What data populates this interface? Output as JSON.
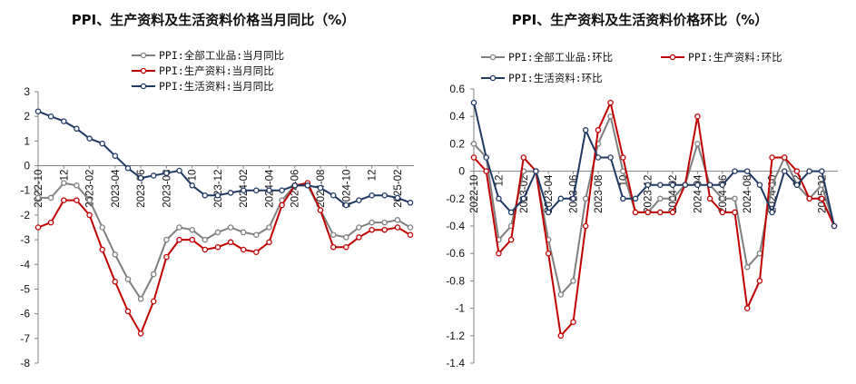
{
  "chart_data": [
    {
      "type": "line",
      "title": "PPI、生产资料及生活资料价格当月同比（%）",
      "x": [
        "2022-10",
        "2022-11",
        "2022-12",
        "2023-01",
        "2023-02",
        "2023-03",
        "2023-04",
        "2023-05",
        "2023-06",
        "2023-07",
        "2023-08",
        "2023-09",
        "2023-10",
        "2023-11",
        "2023-12",
        "2024-01",
        "2024-02",
        "2024-03",
        "2024-04",
        "2024-05",
        "2024-06",
        "2024-07",
        "2024-08",
        "2024-09",
        "2024-10",
        "2024-11",
        "2024-12",
        "2025-01",
        "2025-02",
        "2025-03"
      ],
      "xtick_labels": [
        "2022-10",
        "2022-12",
        "2023-02",
        "2023-04",
        "2023-06",
        "2023-08",
        "2023-10",
        "2023-12",
        "2024-02",
        "2024-04",
        "2024-06",
        "2024-08",
        "2024-10",
        "2024-12",
        "2025-02"
      ],
      "xtick_display": [
        "2022-10",
        "12",
        "2023-02",
        "2023-04",
        "2023-06",
        "2023-08",
        "10",
        "2023-12",
        "2024-02",
        "2024-04",
        "2024-06",
        "2024-08",
        "2024-10",
        "12",
        "2025-02"
      ],
      "ylim": [
        -8,
        3
      ],
      "yticks": [
        3,
        2,
        1,
        0,
        -1,
        -2,
        -3,
        -4,
        -5,
        -6,
        -7,
        -8
      ],
      "series": [
        {
          "name": "PPI:全部工业品:当月同比",
          "color": "#7f7f7f",
          "values": [
            -1.3,
            -1.3,
            -0.7,
            -0.8,
            -1.4,
            -2.5,
            -3.6,
            -4.6,
            -5.4,
            -4.4,
            -3.0,
            -2.5,
            -2.6,
            -3.0,
            -2.7,
            -2.5,
            -2.7,
            -2.8,
            -2.5,
            -1.4,
            -0.8,
            -0.8,
            -1.8,
            -2.8,
            -2.9,
            -2.5,
            -2.3,
            -2.3,
            -2.2,
            -2.5
          ]
        },
        {
          "name": "PPI:生产资料:当月同比",
          "color": "#c00000",
          "values": [
            -2.5,
            -2.3,
            -1.4,
            -1.4,
            -2.0,
            -3.4,
            -4.7,
            -5.9,
            -6.8,
            -5.5,
            -3.7,
            -3.0,
            -3.0,
            -3.4,
            -3.3,
            -3.1,
            -3.4,
            -3.5,
            -3.1,
            -1.6,
            -0.8,
            -0.7,
            -1.8,
            -3.3,
            -3.3,
            -2.9,
            -2.6,
            -2.6,
            -2.5,
            -2.8
          ]
        },
        {
          "name": "PPI:生活资料:当月同比",
          "color": "#1f3864",
          "values": [
            2.2,
            2.0,
            1.8,
            1.5,
            1.1,
            0.9,
            0.4,
            -0.1,
            -0.5,
            -0.4,
            -0.3,
            -0.2,
            -0.8,
            -1.2,
            -1.2,
            -1.1,
            -1.0,
            -1.0,
            -1.0,
            -1.0,
            -0.8,
            -0.8,
            -0.9,
            -1.2,
            -1.6,
            -1.4,
            -1.2,
            -1.2,
            -1.3,
            -1.5
          ]
        }
      ]
    },
    {
      "type": "line",
      "title": "PPI、生产资料及生活资料价格环比（%）",
      "x": [
        "2022-10",
        "2022-11",
        "2022-12",
        "2023-01",
        "2023-02",
        "2023-03",
        "2023-04",
        "2023-05",
        "2023-06",
        "2023-07",
        "2023-08",
        "2023-09",
        "2023-10",
        "2023-11",
        "2023-12",
        "2024-01",
        "2024-02",
        "2024-03",
        "2024-04",
        "2024-05",
        "2024-06",
        "2024-07",
        "2024-08",
        "2024-09",
        "2024-10",
        "2024-11",
        "2024-12",
        "2025-01",
        "2025-02",
        "2025-03"
      ],
      "xtick_labels": [
        "2022-10",
        "2022-12",
        "2023-02",
        "2023-04",
        "2023-06",
        "2023-08",
        "2023-10",
        "2023-12",
        "2024-02",
        "2024-04",
        "2024-06",
        "2024-08",
        "2024-10",
        "2024-12",
        "2025-02"
      ],
      "xtick_display": [
        "2022-10",
        "12",
        "2023-02",
        "2023-04",
        "2023-06",
        "2023-08",
        "10",
        "2023-12",
        "2024-02",
        "2024-04",
        "2024-06",
        "2024-08",
        "2024-10",
        "12",
        "2025-02"
      ],
      "ylim": [
        -1.4,
        0.6
      ],
      "yticks": [
        0.6,
        0.4,
        0.2,
        0,
        -0.2,
        -0.4,
        -0.6,
        -0.8,
        -1,
        -1.2,
        -1.4
      ],
      "series": [
        {
          "name": "PPI:全部工业品:环比",
          "color": "#7f7f7f",
          "values": [
            0.2,
            0.1,
            -0.5,
            -0.4,
            0.0,
            0.0,
            -0.5,
            -0.9,
            -0.8,
            -0.2,
            0.2,
            0.4,
            0.0,
            -0.3,
            -0.3,
            -0.2,
            -0.2,
            -0.1,
            0.2,
            -0.1,
            -0.2,
            -0.2,
            -0.7,
            -0.6,
            -0.1,
            0.1,
            -0.1,
            -0.2,
            -0.1,
            -0.4
          ]
        },
        {
          "name": "PPI:生产资料:环比",
          "color": "#c00000",
          "values": [
            0.1,
            0.0,
            -0.6,
            -0.5,
            0.1,
            0.0,
            -0.6,
            -1.2,
            -1.1,
            -0.4,
            0.3,
            0.5,
            0.1,
            -0.3,
            -0.3,
            -0.3,
            -0.3,
            -0.1,
            0.4,
            -0.2,
            -0.3,
            -0.3,
            -1.0,
            -0.8,
            0.1,
            0.1,
            0.0,
            -0.2,
            -0.2,
            -0.4
          ]
        },
        {
          "name": "PPI:生活资料:环比",
          "color": "#1f3864",
          "values": [
            0.5,
            0.1,
            -0.2,
            -0.3,
            -0.2,
            0.0,
            -0.3,
            -0.2,
            -0.2,
            0.3,
            0.1,
            0.1,
            -0.2,
            -0.2,
            -0.1,
            -0.1,
            -0.1,
            -0.1,
            -0.1,
            -0.1,
            -0.1,
            0.0,
            0.0,
            -0.1,
            -0.3,
            0.0,
            -0.1,
            0.0,
            0.0,
            -0.4
          ]
        }
      ]
    }
  ]
}
